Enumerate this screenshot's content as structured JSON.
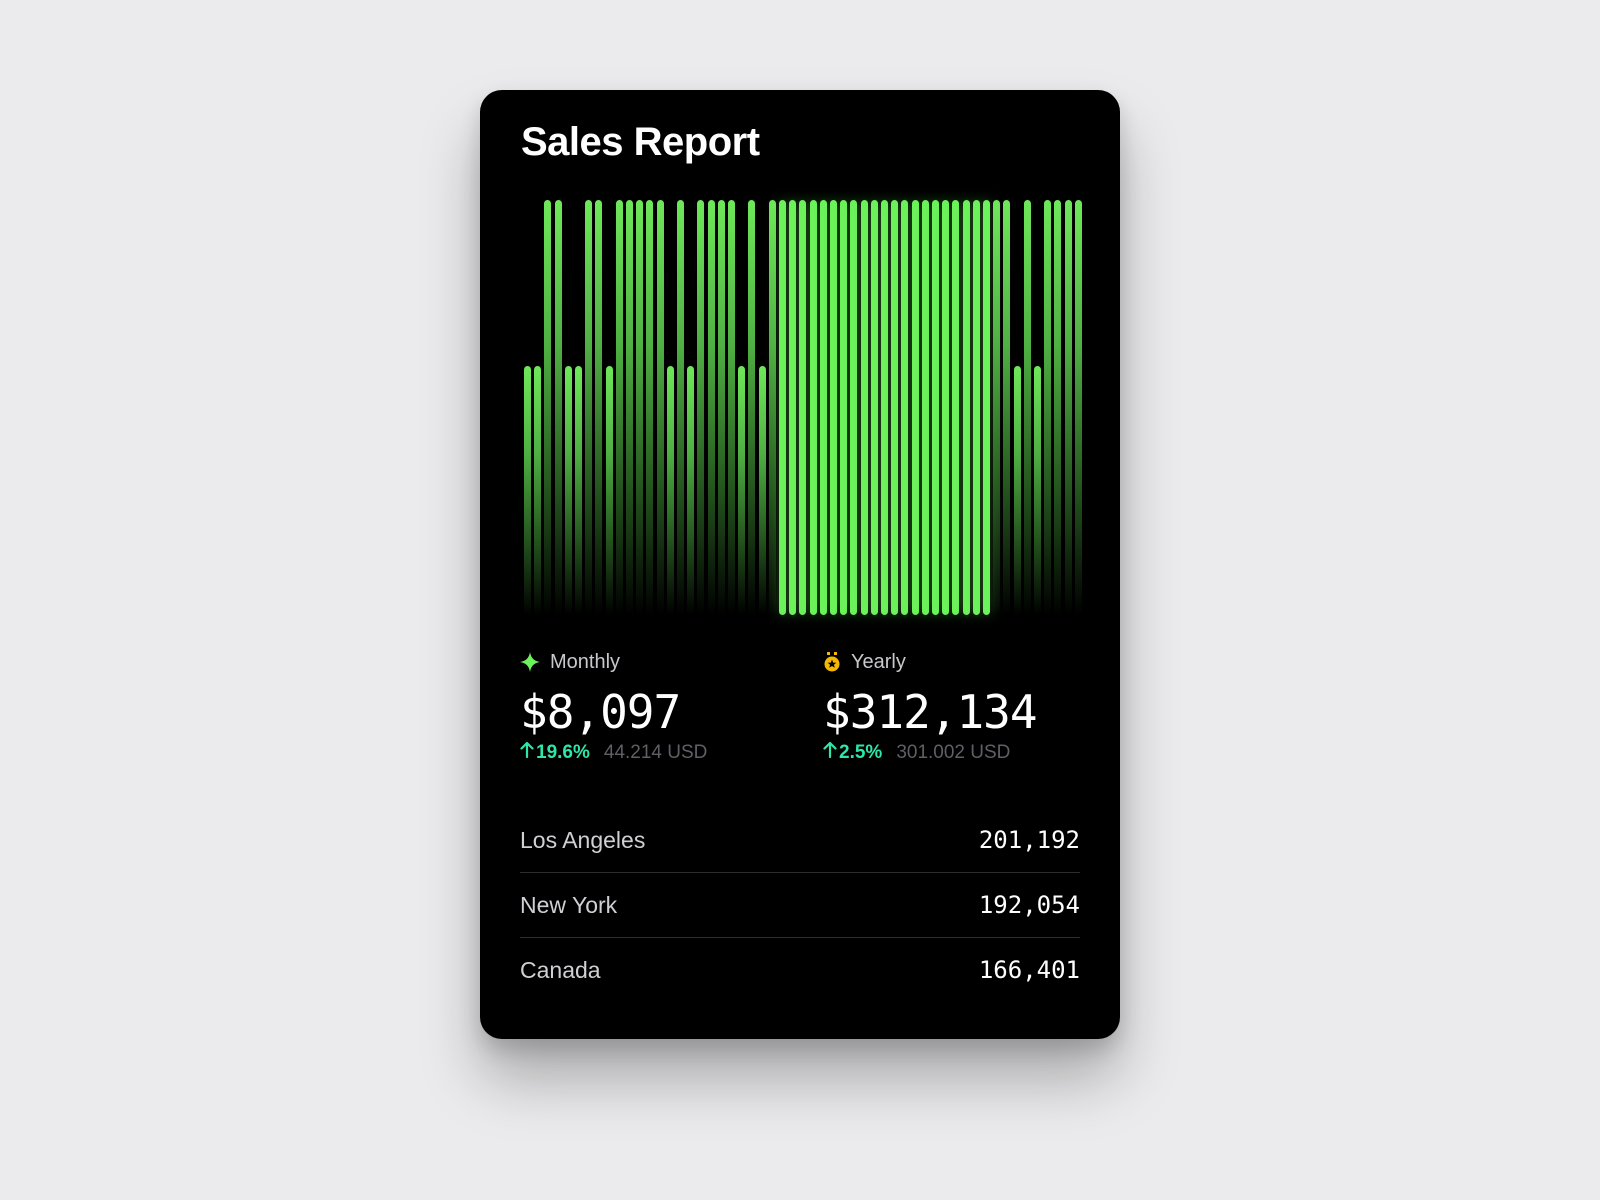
{
  "card": {
    "title": "Sales Report"
  },
  "colors": {
    "bar": "#6fe85a",
    "bar_highlight": "#6cf25a",
    "delta_positive": "#2ee6a6",
    "medal": "#f5b800",
    "background": "#000000"
  },
  "stats": {
    "monthly": {
      "icon": "sparkle-icon",
      "label": "Monthly",
      "value": "$8,097",
      "delta": "19.6%",
      "delta_direction": "up",
      "secondary": "44.214 USD"
    },
    "yearly": {
      "icon": "medal-icon",
      "label": "Yearly",
      "value": "$312,134",
      "delta": "2.5%",
      "delta_direction": "up",
      "secondary": "301.002 USD"
    }
  },
  "locations": [
    {
      "name": "Los Angeles",
      "value": "201,192"
    },
    {
      "name": "New York",
      "value": "192,054"
    },
    {
      "name": "Canada",
      "value": "166,401"
    }
  ],
  "chart_data": {
    "type": "bar",
    "title": "Sales Report",
    "xlabel": "",
    "ylabel": "",
    "grid": false,
    "legend": null,
    "ylim": [
      0,
      100
    ],
    "highlight_range": [
      25,
      45
    ],
    "values": [
      60,
      60,
      100,
      100,
      60,
      60,
      100,
      100,
      60,
      100,
      100,
      100,
      100,
      100,
      60,
      100,
      60,
      100,
      100,
      100,
      100,
      60,
      100,
      60,
      100,
      100,
      100,
      100,
      100,
      100,
      100,
      100,
      100,
      100,
      100,
      100,
      100,
      100,
      100,
      100,
      100,
      100,
      100,
      100,
      100,
      100,
      100,
      100,
      60,
      100,
      60,
      100,
      100,
      100,
      100
    ]
  }
}
